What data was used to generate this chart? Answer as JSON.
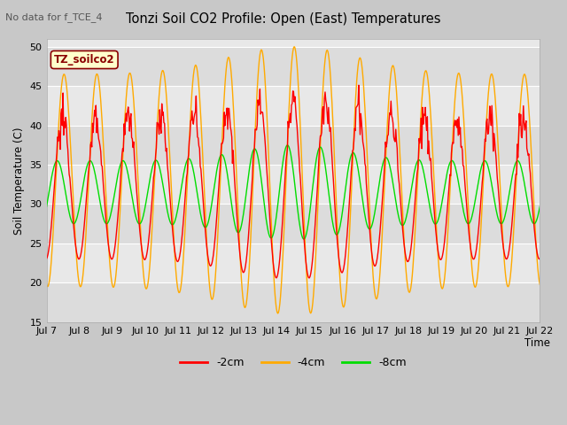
{
  "title": "Tonzi Soil CO2 Profile: Open (East) Temperatures",
  "subtitle": "No data for f_TCE_4",
  "ylabel": "Soil Temperature (C)",
  "xlabel": "Time",
  "legend_label": "TZ_soilco2",
  "ylim": [
    15,
    51
  ],
  "yticks": [
    15,
    20,
    25,
    30,
    35,
    40,
    45,
    50
  ],
  "x_tick_labels": [
    "Jul 7",
    "Jul 8",
    "Jul 9",
    "Jul 10",
    "Jul 11",
    "Jul 12",
    "Jul 13",
    "Jul 14",
    "Jul 15",
    "Jul 16",
    "Jul 17",
    "Jul 18",
    "Jul 19",
    "Jul 20",
    "Jul 21",
    "Jul 22"
  ],
  "colors": {
    "red": "#ff0000",
    "orange": "#ffaa00",
    "green": "#00dd00",
    "fig_bg": "#c8c8c8",
    "plot_bg": "#e8e8e8",
    "grid_color": "#ffffff"
  },
  "line_width": 1.0
}
